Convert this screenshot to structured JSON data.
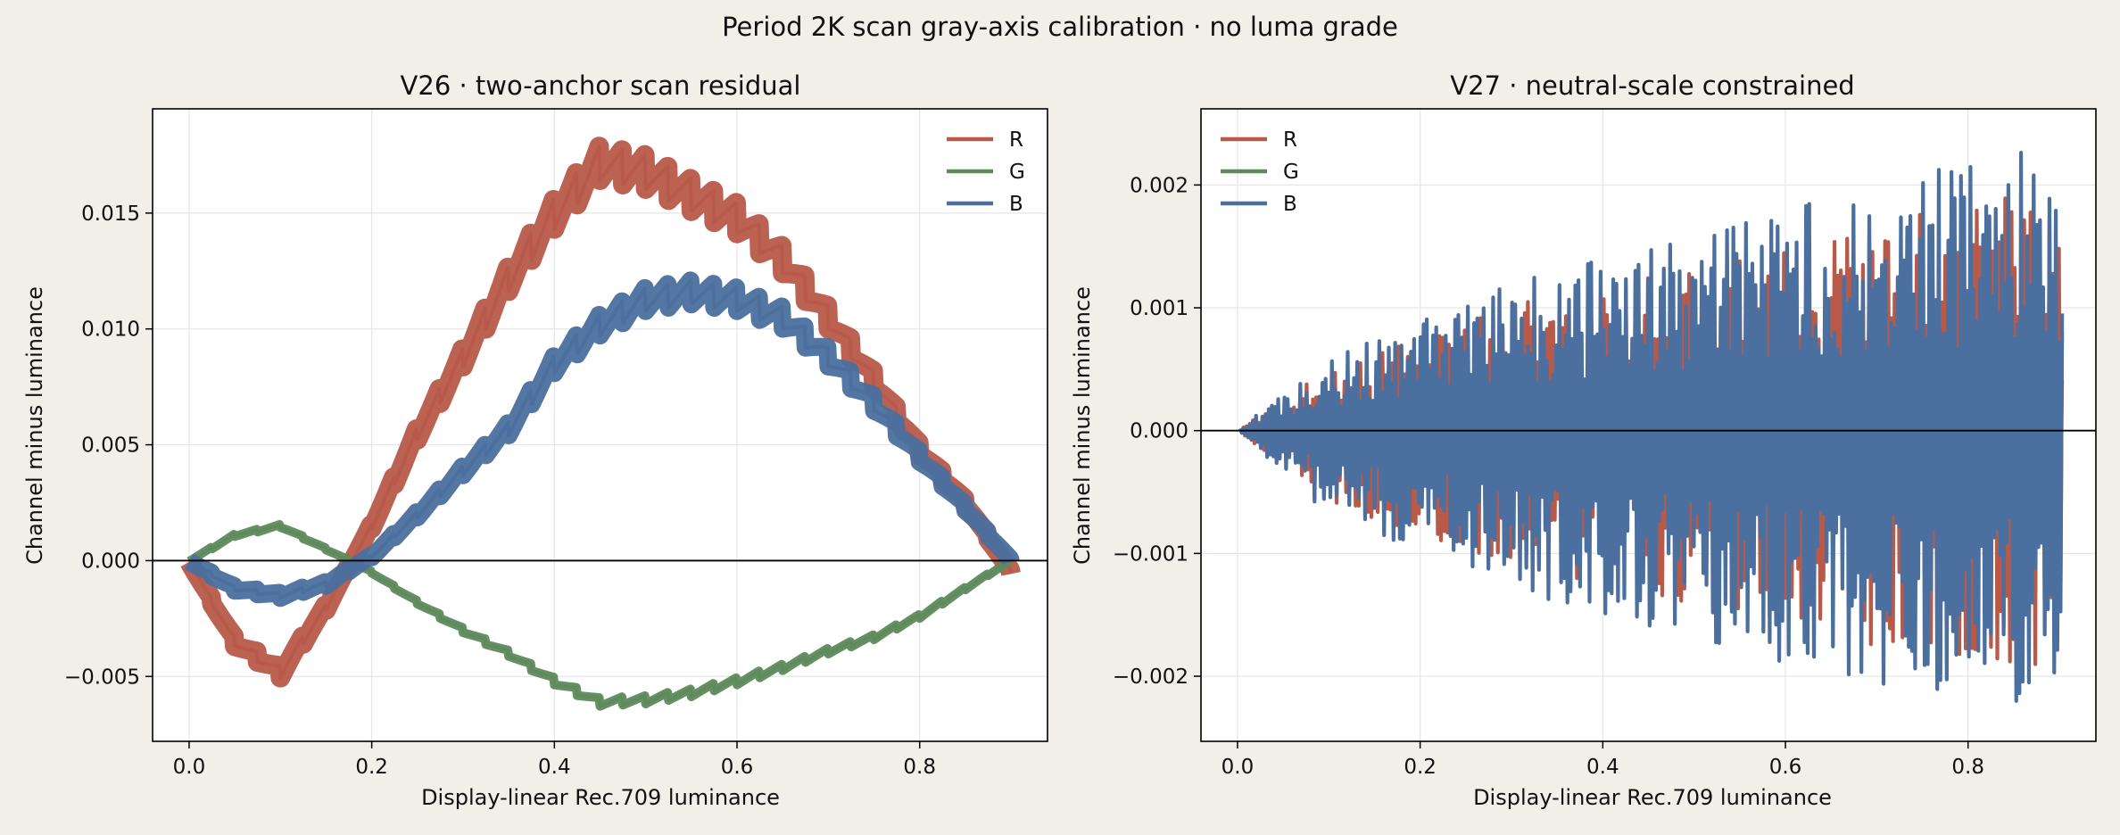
{
  "chart_data": {
    "title": "Period 2K scan gray-axis calibration · no luma grade",
    "colors": {
      "R": "#b85a4a",
      "G": "#5e8a5c",
      "B": "#4b6f9e",
      "background": "#f2efe9"
    },
    "panels": [
      {
        "type": "line",
        "title": "V26 · two-anchor scan residual",
        "xlabel": "Display-linear Rec.709 luminance",
        "ylabel": "Channel minus luminance",
        "xlim": [
          -0.04,
          0.94
        ],
        "ylim": [
          -0.0078,
          0.0195
        ],
        "xticks": [
          0.0,
          0.2,
          0.4,
          0.6,
          0.8
        ],
        "xtick_labels": [
          "0.0",
          "0.2",
          "0.4",
          "0.6",
          "0.8"
        ],
        "yticks": [
          -0.005,
          0.0,
          0.005,
          0.01,
          0.015
        ],
        "ytick_labels": [
          "−0.005",
          "0.000",
          "0.005",
          "0.010",
          "0.015"
        ],
        "grid": true,
        "legend": "upper right",
        "zero_line": true,
        "x": [
          0.0,
          0.05,
          0.1,
          0.15,
          0.2,
          0.25,
          0.3,
          0.35,
          0.4,
          0.45,
          0.5,
          0.55,
          0.6,
          0.65,
          0.7,
          0.75,
          0.8,
          0.85,
          0.9
        ],
        "series": [
          {
            "name": "R",
            "color": "#b85a4a",
            "values": [
              0.0,
              -0.0035,
              -0.0048,
              -0.002,
              0.0015,
              0.0055,
              0.0088,
              0.0122,
              0.015,
              0.0172,
              0.0168,
              0.0158,
              0.0148,
              0.013,
              0.0105,
              0.0078,
              0.0048,
              0.0025,
              -0.0005
            ]
          },
          {
            "name": "G",
            "color": "#5e8a5c",
            "values": [
              0.0,
              0.0011,
              0.0015,
              0.0005,
              -0.0005,
              -0.0018,
              -0.003,
              -0.004,
              -0.0052,
              -0.0061,
              -0.006,
              -0.0057,
              -0.0052,
              -0.0046,
              -0.0039,
              -0.0033,
              -0.0024,
              -0.0012,
              0.0
            ]
          },
          {
            "name": "B",
            "color": "#4b6f9e",
            "values": [
              0.0,
              -0.0012,
              -0.0015,
              -0.001,
              0.0002,
              0.002,
              0.0039,
              0.0057,
              0.0085,
              0.0102,
              0.0113,
              0.0116,
              0.0113,
              0.0105,
              0.0088,
              0.0068,
              0.0045,
              0.0023,
              0.0
            ]
          }
        ]
      },
      {
        "type": "line",
        "title": "V27 · neutral-scale constrained",
        "xlabel": "Display-linear Rec.709 luminance",
        "ylabel": "Channel minus luminance",
        "xlim": [
          -0.04,
          0.94
        ],
        "ylim": [
          -0.00253,
          0.00262
        ],
        "xticks": [
          0.0,
          0.2,
          0.4,
          0.6,
          0.8
        ],
        "xtick_labels": [
          "0.0",
          "0.2",
          "0.4",
          "0.6",
          "0.8"
        ],
        "yticks": [
          -0.002,
          -0.001,
          0.0,
          0.001,
          0.002
        ],
        "ytick_labels": [
          "−0.002",
          "−0.001",
          "0.000",
          "0.001",
          "0.002"
        ],
        "grid": true,
        "legend": "upper left",
        "zero_line": true,
        "envelope": {
          "x": [
            0.0,
            0.1,
            0.2,
            0.3,
            0.4,
            0.5,
            0.6,
            0.7,
            0.8,
            0.9
          ],
          "upper": [
            0.0,
            0.0006,
            0.0009,
            0.0012,
            0.0014,
            0.0016,
            0.0018,
            0.002,
            0.0022,
            0.00235
          ],
          "lower": [
            0.0,
            -0.0007,
            -0.001,
            -0.0013,
            -0.0015,
            -0.0017,
            -0.0019,
            -0.0021,
            -0.0022,
            -0.0023
          ]
        },
        "series": [
          {
            "name": "R",
            "color": "#b85a4a",
            "amplitude": 0.85
          },
          {
            "name": "G",
            "color": "#5e8a5c",
            "amplitude": 0.22
          },
          {
            "name": "B",
            "color": "#4b6f9e",
            "amplitude": 1.0
          }
        ]
      }
    ]
  }
}
